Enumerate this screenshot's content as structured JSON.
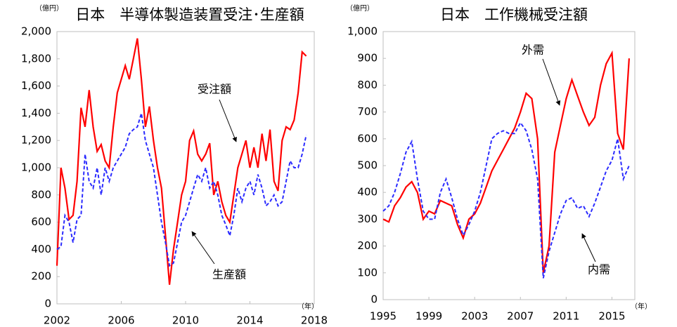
{
  "chart_data": [
    {
      "type": "line",
      "title": "日本　半導体製造装置受注･生産額",
      "y_unit": "（億円）",
      "x_unit": "（年）",
      "x": [
        2002,
        2002.25,
        2002.5,
        2002.75,
        2003,
        2003.25,
        2003.5,
        2003.75,
        2004,
        2004.25,
        2004.5,
        2004.75,
        2005,
        2005.25,
        2005.5,
        2005.75,
        2006,
        2006.25,
        2006.5,
        2006.75,
        2007,
        2007.25,
        2007.5,
        2007.75,
        2008,
        2008.25,
        2008.5,
        2008.75,
        2009,
        2009.25,
        2009.5,
        2009.75,
        2010,
        2010.25,
        2010.5,
        2010.75,
        2011,
        2011.25,
        2011.5,
        2011.75,
        2012,
        2012.25,
        2012.5,
        2012.75,
        2013,
        2013.25,
        2013.5,
        2013.75,
        2014,
        2014.25,
        2014.5,
        2014.75,
        2015,
        2015.25,
        2015.5,
        2015.75,
        2016,
        2016.25,
        2016.5,
        2016.75,
        2017,
        2017.25,
        2017.5
      ],
      "series": [
        {
          "name": "受注額",
          "color": "#ff0000",
          "dashed": false,
          "values": [
            280,
            1000,
            850,
            620,
            650,
            900,
            1440,
            1300,
            1570,
            1300,
            1120,
            1170,
            1050,
            1000,
            1300,
            1550,
            1650,
            1750,
            1650,
            1800,
            1950,
            1650,
            1300,
            1450,
            1200,
            1000,
            850,
            500,
            140,
            400,
            600,
            800,
            900,
            1200,
            1270,
            1100,
            1050,
            1100,
            1180,
            800,
            900,
            750,
            650,
            600,
            800,
            1000,
            1100,
            1200,
            1000,
            1150,
            1000,
            1250,
            1050,
            1280,
            900,
            830,
            1200,
            1300,
            1280,
            1350,
            1550,
            1850,
            1820
          ]
        },
        {
          "name": "生産額",
          "color": "#2b2bff",
          "dashed": true,
          "values": [
            400,
            420,
            650,
            600,
            450,
            620,
            650,
            1100,
            900,
            850,
            1000,
            800,
            1000,
            900,
            1000,
            1050,
            1100,
            1150,
            1250,
            1280,
            1300,
            1400,
            1200,
            1100,
            1000,
            800,
            600,
            450,
            280,
            300,
            450,
            600,
            650,
            750,
            850,
            950,
            900,
            1000,
            850,
            900,
            800,
            650,
            580,
            500,
            650,
            850,
            750,
            850,
            900,
            800,
            950,
            850,
            720,
            750,
            800,
            720,
            750,
            900,
            1050,
            1000,
            1000,
            1100,
            1240
          ]
        }
      ],
      "xlim": [
        2002,
        2018
      ],
      "xticks": [
        2002,
        2006,
        2010,
        2014,
        2018
      ],
      "ylim": [
        0,
        2000
      ],
      "yticks": [
        0,
        200,
        400,
        600,
        800,
        {
          "value": 1000,
          "label": "1,000"
        },
        {
          "value": 1200,
          "label": "1,200"
        },
        {
          "value": 1400,
          "label": "1,400"
        },
        {
          "value": 1600,
          "label": "1,600"
        },
        {
          "value": 1800,
          "label": "1,800"
        },
        {
          "value": 2000,
          "label": "2,000"
        }
      ],
      "grid": false
    },
    {
      "type": "line",
      "title": "日本　工作機械受注額",
      "y_unit": "（億円）",
      "x_unit": "（年）",
      "x": [
        1995,
        1995.5,
        1996,
        1996.5,
        1997,
        1997.5,
        1998,
        1998.5,
        1999,
        1999.5,
        2000,
        2000.5,
        2001,
        2001.5,
        2002,
        2002.5,
        2003,
        2003.5,
        2004,
        2004.5,
        2005,
        2005.5,
        2006,
        2006.5,
        2007,
        2007.5,
        2008,
        2008.5,
        2009,
        2009.5,
        2010,
        2010.5,
        2011,
        2011.5,
        2012,
        2012.5,
        2013,
        2013.5,
        2014,
        2014.5,
        2015,
        2015.5,
        2016,
        2016.5
      ],
      "series": [
        {
          "name": "外需",
          "color": "#ff0000",
          "dashed": false,
          "values": [
            300,
            290,
            350,
            380,
            420,
            440,
            400,
            300,
            330,
            320,
            370,
            360,
            350,
            280,
            230,
            300,
            320,
            360,
            420,
            480,
            520,
            560,
            600,
            640,
            700,
            770,
            750,
            600,
            100,
            200,
            550,
            650,
            750,
            820,
            760,
            700,
            650,
            680,
            800,
            880,
            920,
            620,
            560,
            900
          ]
        },
        {
          "name": "内需",
          "color": "#2b2bff",
          "dashed": true,
          "values": [
            330,
            350,
            400,
            470,
            550,
            590,
            450,
            330,
            300,
            300,
            400,
            450,
            380,
            300,
            240,
            280,
            330,
            400,
            500,
            600,
            620,
            630,
            620,
            620,
            660,
            630,
            560,
            450,
            80,
            180,
            250,
            320,
            370,
            380,
            340,
            350,
            310,
            360,
            420,
            480,
            520,
            600,
            450,
            500
          ]
        }
      ],
      "xlim": [
        1995,
        2017
      ],
      "xticks": [
        1995,
        1999,
        2003,
        2007,
        2011,
        2015
      ],
      "ylim": [
        0,
        1000
      ],
      "yticks": [
        0,
        100,
        200,
        300,
        400,
        500,
        600,
        700,
        800,
        900,
        {
          "value": 1000,
          "label": "1,000"
        }
      ],
      "grid": false
    }
  ]
}
